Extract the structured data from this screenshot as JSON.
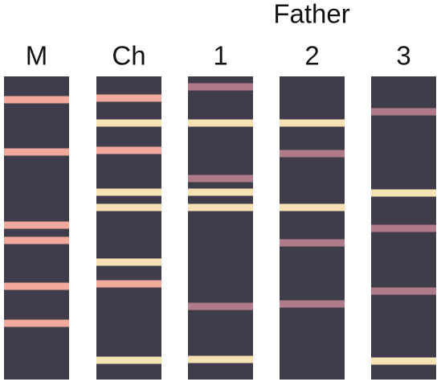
{
  "header": {
    "title": "Father"
  },
  "lanes": [
    "M",
    "Ch",
    "1",
    "2",
    "3"
  ]
}
